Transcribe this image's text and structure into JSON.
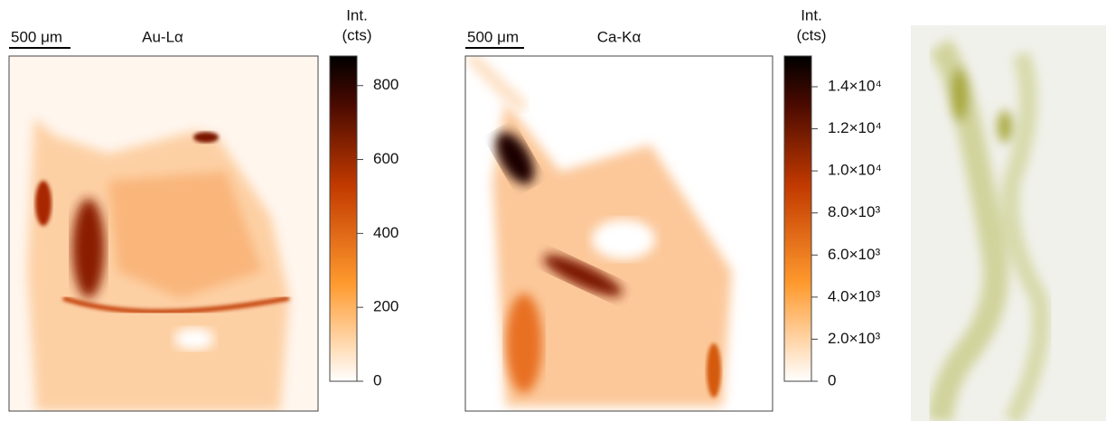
{
  "panels": [
    {
      "scale_bar": "500 μm",
      "title": "Au-Lα",
      "colorbar": {
        "label": [
          "Int.",
          "(cts)"
        ],
        "lim": [
          0,
          880
        ],
        "ticks": [
          0,
          200,
          400,
          600,
          800
        ]
      }
    },
    {
      "scale_bar": "500 μm",
      "title": "Ca-Kα",
      "colorbar": {
        "label": [
          "Int.",
          "(cts)"
        ],
        "lim": [
          0,
          15460
        ],
        "ticks": [
          0,
          {
            "value": 2000,
            "label": "2.0×10³"
          },
          {
            "value": 4000,
            "label": "4.0×10³"
          },
          {
            "value": 6000,
            "label": "6.0×10³"
          },
          {
            "value": 8000,
            "label": "8.0×10³"
          },
          {
            "value": 10000,
            "label": "1.0×10⁴"
          },
          {
            "value": 12000,
            "label": "1.2×10⁴"
          },
          {
            "value": 14000,
            "label": "1.4×10⁴"
          }
        ]
      }
    }
  ]
}
